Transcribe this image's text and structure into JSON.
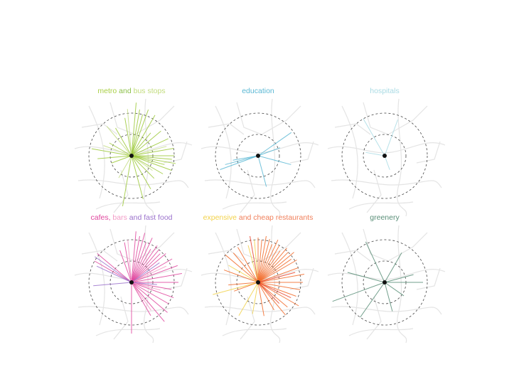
{
  "panels": [
    {
      "title": [
        {
          "text": "metro",
          "color": "#a9cf45"
        },
        {
          "text": " and ",
          "color": "#8cc04a"
        },
        {
          "text": "bus stops",
          "color": "#c2dc7c"
        }
      ],
      "ray_groups": [
        {
          "color": "#9dc93a",
          "rays": [
            [
              -80,
              1.1
            ],
            [
              -85,
              1.25
            ],
            [
              -75,
              1.0
            ],
            [
              -70,
              1.15
            ],
            [
              -100,
              0.9
            ],
            [
              -120,
              0.75
            ],
            [
              -150,
              0.6
            ],
            [
              -170,
              0.95
            ],
            [
              175,
              0.8
            ],
            [
              160,
              0.5
            ],
            [
              20,
              1.0
            ],
            [
              10,
              1.05
            ],
            [
              0,
              1.0
            ],
            [
              -10,
              1.0
            ],
            [
              -25,
              0.95
            ],
            [
              -40,
              0.9
            ],
            [
              30,
              0.85
            ],
            [
              45,
              0.75
            ],
            [
              60,
              0.9
            ],
            [
              75,
              1.05
            ],
            [
              100,
              1.2
            ],
            [
              -60,
              1.1
            ],
            [
              -50,
              0.7
            ],
            [
              5,
              0.95
            ],
            [
              15,
              0.8
            ]
          ]
        },
        {
          "color": "#c5de86",
          "rays": [
            [
              -95,
              1.1
            ],
            [
              -130,
              0.9
            ],
            [
              -160,
              0.7
            ],
            [
              35,
              0.6
            ],
            [
              -15,
              0.85
            ],
            [
              120,
              0.6
            ]
          ]
        }
      ]
    },
    {
      "title": [
        {
          "text": "education",
          "color": "#5bb8d4"
        }
      ],
      "ray_groups": [
        {
          "color": "#5bb8d4",
          "rays": [
            [
              -35,
              0.95
            ],
            [
              -20,
              0.55
            ],
            [
              15,
              0.8
            ],
            [
              75,
              0.75
            ],
            [
              160,
              0.95
            ],
            [
              165,
              0.8
            ],
            [
              170,
              0.6
            ]
          ]
        }
      ]
    },
    {
      "title": [
        {
          "text": "hospitals",
          "color": "#a9dbe4"
        }
      ],
      "ray_groups": [
        {
          "color": "#a9dbe4",
          "rays": [
            [
              -70,
              0.9
            ],
            [
              -120,
              1.0
            ],
            [
              -170,
              0.45
            ],
            [
              70,
              0.35
            ]
          ]
        }
      ]
    },
    {
      "title": [
        {
          "text": "cafes,",
          "color": "#e0479e"
        },
        {
          "text": " bars ",
          "color": "#f29bc6"
        },
        {
          "text": "and fast food",
          "color": "#9b72cc"
        }
      ],
      "ray_groups": [
        {
          "color": "#e0479e",
          "rays": [
            [
              -85,
              1.2
            ],
            [
              -80,
              1.1
            ],
            [
              -75,
              1.2
            ],
            [
              -70,
              1.0
            ],
            [
              -65,
              1.15
            ],
            [
              -60,
              0.9
            ],
            [
              -55,
              1.05
            ],
            [
              -50,
              1.0
            ],
            [
              -45,
              0.95
            ],
            [
              -40,
              1.05
            ],
            [
              -30,
              1.1
            ],
            [
              -20,
              1.15
            ],
            [
              -10,
              1.2
            ],
            [
              0,
              1.1
            ],
            [
              10,
              0.95
            ],
            [
              20,
              1.05
            ],
            [
              30,
              1.0
            ],
            [
              40,
              1.1
            ],
            [
              50,
              1.2
            ],
            [
              60,
              0.9
            ],
            [
              90,
              1.2
            ],
            [
              -140,
              1.05
            ],
            [
              -150,
              1.0
            ],
            [
              -100,
              0.95
            ],
            [
              -110,
              0.8
            ]
          ]
        },
        {
          "color": "#f29bc6",
          "rays": [
            [
              -95,
              1.0
            ],
            [
              -25,
              0.9
            ],
            [
              15,
              0.7
            ],
            [
              55,
              0.8
            ]
          ]
        },
        {
          "color": "#9b72cc",
          "rays": [
            [
              -145,
              1.05
            ],
            [
              -155,
              0.9
            ],
            [
              175,
              0.9
            ],
            [
              5,
              0.6
            ],
            [
              -35,
              0.8
            ]
          ]
        }
      ]
    },
    {
      "title": [
        {
          "text": "expensive",
          "color": "#f2d24a"
        },
        {
          "text": " and cheap restaurants",
          "color": "#f07f5a"
        }
      ],
      "ray_groups": [
        {
          "color": "#f26b2a",
          "rays": [
            [
              -90,
              1.05
            ],
            [
              -85,
              1.0
            ],
            [
              -80,
              1.1
            ],
            [
              -75,
              1.05
            ],
            [
              -70,
              0.95
            ],
            [
              -65,
              1.1
            ],
            [
              -60,
              1.0
            ],
            [
              -55,
              0.9
            ],
            [
              -50,
              1.05
            ],
            [
              -45,
              1.0
            ],
            [
              -40,
              1.1
            ],
            [
              -35,
              0.95
            ],
            [
              -30,
              1.05
            ],
            [
              -20,
              1.0
            ],
            [
              -10,
              1.1
            ],
            [
              0,
              1.05
            ],
            [
              10,
              1.0
            ],
            [
              20,
              0.95
            ],
            [
              30,
              1.1
            ],
            [
              40,
              0.9
            ],
            [
              50,
              1.0
            ],
            [
              60,
              0.75
            ],
            [
              80,
              0.8
            ],
            [
              -120,
              0.95
            ],
            [
              -130,
              0.9
            ],
            [
              -140,
              1.0
            ],
            [
              -160,
              0.85
            ],
            [
              175,
              0.7
            ],
            [
              160,
              0.6
            ]
          ]
        },
        {
          "color": "#f2d24a",
          "rays": [
            [
              -95,
              1.0
            ],
            [
              -105,
              0.9
            ],
            [
              -150,
              0.8
            ],
            [
              165,
              1.1
            ],
            [
              120,
              0.9
            ],
            [
              100,
              0.75
            ]
          ]
        },
        {
          "color": "#e8452e",
          "rays": [
            [
              -15,
              0.9
            ],
            [
              25,
              0.85
            ],
            [
              -100,
              1.1
            ],
            [
              45,
              0.7
            ]
          ]
        }
      ]
    },
    {
      "title": [
        {
          "text": "greenery",
          "color": "#5a8f78"
        }
      ],
      "ray_groups": [
        {
          "color": "#5a8f78",
          "rays": [
            [
              -115,
              1.05
            ],
            [
              -60,
              0.8
            ],
            [
              -15,
              0.7
            ],
            [
              0,
              0.9
            ],
            [
              35,
              0.55
            ],
            [
              75,
              0.7
            ],
            [
              125,
              1.0
            ],
            [
              160,
              1.3
            ],
            [
              -165,
              0.9
            ]
          ]
        }
      ]
    }
  ]
}
